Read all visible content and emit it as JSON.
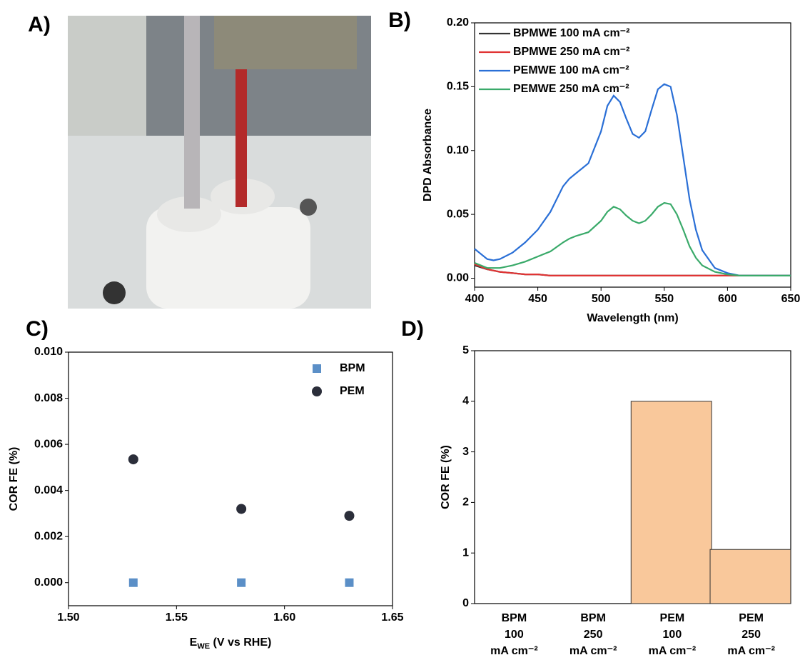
{
  "photo": {
    "label": "A)"
  },
  "chart_data": [
    {
      "type": "line",
      "label": "B)",
      "xlabel": "Wavelength (nm)",
      "ylabel": "DPD Absorbance",
      "x": [
        400,
        410,
        415,
        420,
        430,
        440,
        450,
        460,
        470,
        475,
        480,
        490,
        500,
        505,
        510,
        515,
        520,
        525,
        530,
        535,
        540,
        545,
        550,
        555,
        560,
        565,
        570,
        575,
        580,
        590,
        600,
        610,
        620,
        650
      ],
      "series": [
        {
          "name": "BPMWE 100 mA cm⁻²",
          "color": "#333333",
          "values": [
            0.01,
            0.007,
            0.006,
            0.005,
            0.004,
            0.003,
            0.003,
            0.002,
            0.002,
            0.002,
            0.002,
            0.002,
            0.002,
            0.002,
            0.002,
            0.002,
            0.002,
            0.002,
            0.002,
            0.002,
            0.002,
            0.002,
            0.002,
            0.002,
            0.002,
            0.002,
            0.002,
            0.002,
            0.002,
            0.002,
            0.002,
            0.002,
            0.002,
            0.002
          ]
        },
        {
          "name": "BPMWE 250 mA cm⁻²",
          "color": "#e03434",
          "values": [
            0.011,
            0.007,
            0.006,
            0.005,
            0.004,
            0.003,
            0.003,
            0.002,
            0.002,
            0.002,
            0.002,
            0.002,
            0.002,
            0.002,
            0.002,
            0.002,
            0.002,
            0.002,
            0.002,
            0.002,
            0.002,
            0.002,
            0.002,
            0.002,
            0.002,
            0.002,
            0.002,
            0.002,
            0.002,
            0.002,
            0.002,
            0.002,
            0.002,
            0.002
          ]
        },
        {
          "name": "PEMWE 100 mA cm⁻²",
          "color": "#2a6fd6",
          "values": [
            0.023,
            0.015,
            0.014,
            0.015,
            0.02,
            0.028,
            0.038,
            0.052,
            0.072,
            0.078,
            0.082,
            0.09,
            0.115,
            0.135,
            0.143,
            0.138,
            0.125,
            0.113,
            0.11,
            0.115,
            0.132,
            0.148,
            0.152,
            0.15,
            0.128,
            0.095,
            0.062,
            0.038,
            0.022,
            0.008,
            0.004,
            0.002,
            0.002,
            0.002
          ]
        },
        {
          "name": "PEMWE 250 mA cm⁻²",
          "color": "#3aaa6a",
          "values": [
            0.012,
            0.008,
            0.008,
            0.008,
            0.01,
            0.013,
            0.017,
            0.021,
            0.028,
            0.031,
            0.033,
            0.036,
            0.045,
            0.052,
            0.056,
            0.054,
            0.049,
            0.045,
            0.043,
            0.045,
            0.05,
            0.056,
            0.059,
            0.058,
            0.05,
            0.038,
            0.025,
            0.016,
            0.01,
            0.005,
            0.003,
            0.002,
            0.002,
            0.002
          ]
        }
      ],
      "xlim": [
        400,
        650
      ],
      "xticks": [
        400,
        450,
        500,
        550,
        600,
        650
      ],
      "ylim": [
        -0.007,
        0.2
      ],
      "yticks": [
        {
          "value": 0,
          "label": "0.00"
        },
        {
          "value": 0.05,
          "label": "0.05"
        },
        {
          "value": 0.1,
          "label": "0.10"
        },
        {
          "value": 0.15,
          "label": "0.15"
        },
        {
          "value": 0.2,
          "label": "0.20"
        }
      ],
      "legend": "upper left",
      "grid": false
    },
    {
      "type": "scatter",
      "label": "C)",
      "xlabel": [
        "E",
        "WE",
        " (V vs RHE)"
      ],
      "ylabel": "COR FE (%)",
      "x": [
        1.53,
        1.58,
        1.63
      ],
      "series": [
        {
          "name": "BPM",
          "color": "#5b8fc7",
          "marker": "square",
          "values": [
            0,
            0,
            0
          ]
        },
        {
          "name": "PEM",
          "color": "#2b2e3a",
          "marker": "circle",
          "values": [
            0.00535,
            0.0032,
            0.0029
          ]
        }
      ],
      "xlim": [
        1.5,
        1.65
      ],
      "xticks": [
        {
          "value": 1.5,
          "label": "1.50"
        },
        {
          "value": 1.55,
          "label": "1.55"
        },
        {
          "value": 1.6,
          "label": "1.60"
        },
        {
          "value": 1.65,
          "label": "1.65"
        }
      ],
      "ylim": [
        -0.001,
        0.01
      ],
      "yticks": [
        {
          "value": 0,
          "label": "0.000"
        },
        {
          "value": 0.002,
          "label": "0.002"
        },
        {
          "value": 0.004,
          "label": "0.004"
        },
        {
          "value": 0.006,
          "label": "0.006"
        },
        {
          "value": 0.008,
          "label": "0.008"
        },
        {
          "value": 0.01,
          "label": "0.010"
        }
      ],
      "legend": "upper right",
      "grid": false
    },
    {
      "type": "bar",
      "label": "D)",
      "ylabel": "COR FE (%)",
      "categories": [
        [
          "BPM",
          "100",
          "mA cm⁻²"
        ],
        [
          "BPM",
          "250",
          "mA cm⁻²"
        ],
        [
          "PEM",
          "100",
          "mA cm⁻²"
        ],
        [
          "PEM",
          "250",
          "mA cm⁻²"
        ]
      ],
      "values": [
        0,
        0,
        4,
        1.07
      ],
      "color": "#f9c89b",
      "ylim": [
        0,
        5
      ],
      "yticks": [
        0,
        1,
        2,
        3,
        4,
        5
      ],
      "grid": false
    }
  ]
}
